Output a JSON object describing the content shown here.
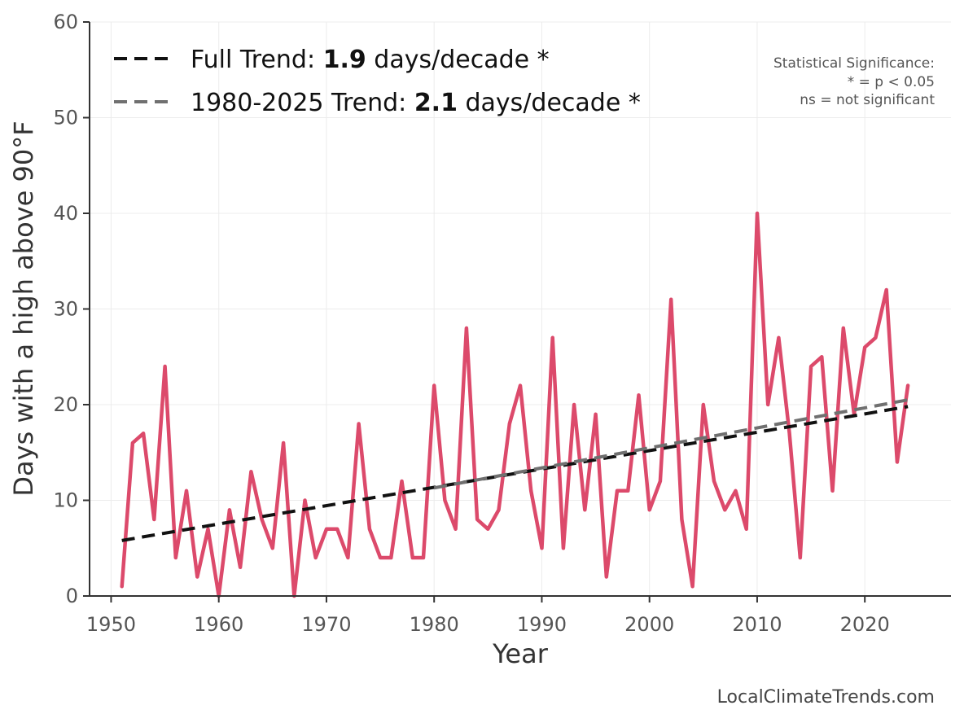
{
  "watermark": "LocalClimateTrends.com",
  "significance_note": [
    "Statistical Significance:",
    "* = p < 0.05",
    "ns = not significant"
  ],
  "legend": [
    {
      "prefix": "Full Trend: ",
      "value": "1.9",
      "suffix": " days/decade *",
      "color": "#111111"
    },
    {
      "prefix": "1980-2025 Trend: ",
      "value": "2.1",
      "suffix": " days/decade *",
      "color": "#707070"
    }
  ],
  "chart_data": {
    "type": "line",
    "xlabel": "Year",
    "ylabel": "Days with a high above 90°F",
    "xlim": [
      1948,
      2028
    ],
    "ylim": [
      0,
      60
    ],
    "xticks": [
      1950,
      1960,
      1970,
      1980,
      1990,
      2000,
      2010,
      2020
    ],
    "yticks": [
      0,
      10,
      20,
      30,
      40,
      50,
      60
    ],
    "grid": true,
    "legend_position": "top-left",
    "series": [
      {
        "color": "#dc4a6b",
        "x": [
          1951,
          1952,
          1953,
          1954,
          1955,
          1956,
          1957,
          1958,
          1959,
          1960,
          1961,
          1962,
          1963,
          1964,
          1965,
          1966,
          1967,
          1968,
          1969,
          1970,
          1971,
          1972,
          1973,
          1974,
          1975,
          1976,
          1977,
          1978,
          1979,
          1980,
          1981,
          1982,
          1983,
          1984,
          1985,
          1986,
          1987,
          1988,
          1989,
          1990,
          1991,
          1992,
          1993,
          1994,
          1995,
          1996,
          1997,
          1998,
          1999,
          2000,
          2001,
          2002,
          2003,
          2004,
          2005,
          2006,
          2007,
          2008,
          2009,
          2010,
          2011,
          2012,
          2013,
          2014,
          2015,
          2016,
          2017,
          2018,
          2019,
          2020,
          2021,
          2022,
          2023,
          2024
        ],
        "y": [
          1,
          16,
          17,
          8,
          24,
          4,
          11,
          2,
          7,
          0,
          9,
          3,
          13,
          8,
          5,
          16,
          0,
          10,
          4,
          7,
          7,
          4,
          18,
          7,
          4,
          4,
          12,
          4,
          4,
          22,
          10,
          7,
          28,
          8,
          7,
          9,
          18,
          22,
          11,
          5,
          27,
          5,
          20,
          9,
          19,
          2,
          11,
          11,
          21,
          9,
          12,
          31,
          8,
          1,
          20,
          12,
          9,
          11,
          7,
          40,
          20,
          27,
          17,
          4,
          24,
          25,
          11,
          28,
          19,
          26,
          27,
          32,
          14,
          22
        ]
      }
    ],
    "trends": [
      {
        "name": "Full Trend",
        "x": [
          1951,
          2024
        ],
        "y": [
          5.8,
          19.8
        ],
        "color": "#111111"
      },
      {
        "name": "1980-2025 Trend",
        "x": [
          1980,
          2024
        ],
        "y": [
          11.3,
          20.5
        ],
        "color": "#707070"
      }
    ]
  }
}
